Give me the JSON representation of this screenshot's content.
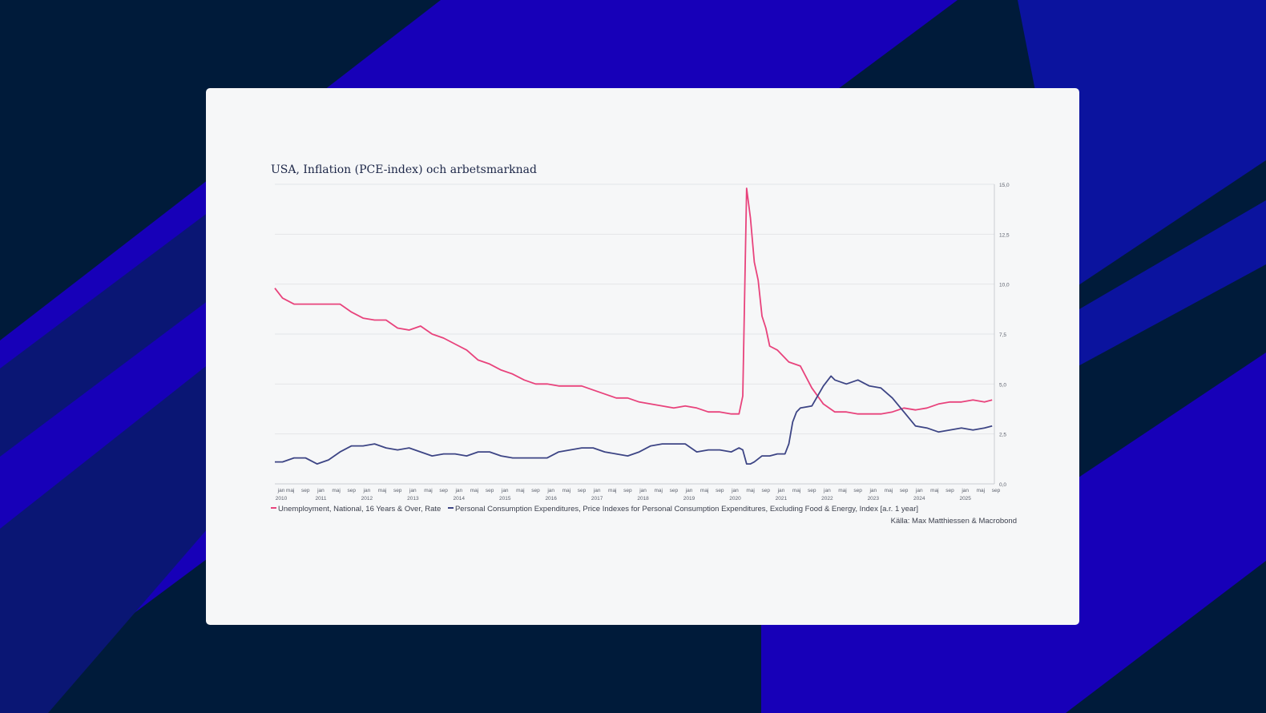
{
  "colors": {
    "background": "#001b3a",
    "stripe_bright": "#1700b8",
    "stripe_blue": "#0b139e",
    "stripe_navy": "#0a1674",
    "card": "#f6f7f8",
    "unemployment": "#e8437c",
    "pce": "#3d4585"
  },
  "chart_data": {
    "type": "line",
    "title": "USA, Inflation (PCE-index) och arbetsmarknad",
    "xlabel": "",
    "ylabel": "",
    "x_range": [
      "2010-01",
      "2025-09"
    ],
    "ylim": [
      0,
      15
    ],
    "y_ticks": [
      "0,0",
      "2,5",
      "5,0",
      "7,5",
      "10,0",
      "12,5",
      "15,0"
    ],
    "y_axis_side": "right",
    "grid": "horizontal",
    "x_tick_labels": [
      {
        "month": "jan",
        "year": "2010"
      },
      {
        "month": "maj",
        "year": ""
      },
      {
        "month": "sep",
        "year": ""
      },
      {
        "month": "jan",
        "year": "2011"
      },
      {
        "month": "maj",
        "year": ""
      },
      {
        "month": "sep",
        "year": ""
      },
      {
        "month": "jan",
        "year": "2012"
      },
      {
        "month": "maj",
        "year": ""
      },
      {
        "month": "sep",
        "year": ""
      },
      {
        "month": "jan",
        "year": "2013"
      },
      {
        "month": "maj",
        "year": ""
      },
      {
        "month": "sep",
        "year": ""
      },
      {
        "month": "jan",
        "year": "2014"
      },
      {
        "month": "maj",
        "year": ""
      },
      {
        "month": "sep",
        "year": ""
      },
      {
        "month": "jan",
        "year": "2015"
      },
      {
        "month": "maj",
        "year": ""
      },
      {
        "month": "sep",
        "year": ""
      },
      {
        "month": "jan",
        "year": "2016"
      },
      {
        "month": "maj",
        "year": ""
      },
      {
        "month": "sep",
        "year": ""
      },
      {
        "month": "jan",
        "year": "2017"
      },
      {
        "month": "maj",
        "year": ""
      },
      {
        "month": "sep",
        "year": ""
      },
      {
        "month": "jan",
        "year": "2018"
      },
      {
        "month": "maj",
        "year": ""
      },
      {
        "month": "sep",
        "year": ""
      },
      {
        "month": "jan",
        "year": "2019"
      },
      {
        "month": "maj",
        "year": ""
      },
      {
        "month": "sep",
        "year": ""
      },
      {
        "month": "jan",
        "year": "2020"
      },
      {
        "month": "maj",
        "year": ""
      },
      {
        "month": "sep",
        "year": ""
      },
      {
        "month": "jan",
        "year": "2021"
      },
      {
        "month": "maj",
        "year": ""
      },
      {
        "month": "sep",
        "year": ""
      },
      {
        "month": "jan",
        "year": "2022"
      },
      {
        "month": "maj",
        "year": ""
      },
      {
        "month": "sep",
        "year": ""
      },
      {
        "month": "jan",
        "year": "2023"
      },
      {
        "month": "maj",
        "year": ""
      },
      {
        "month": "sep",
        "year": ""
      },
      {
        "month": "jan",
        "year": "2024"
      },
      {
        "month": "maj",
        "year": ""
      },
      {
        "month": "sep",
        "year": ""
      },
      {
        "month": "jan",
        "year": "2025"
      },
      {
        "month": "maj",
        "year": ""
      },
      {
        "month": "sep",
        "year": ""
      }
    ],
    "series": [
      {
        "name": "Unemployment, National, 16 Years & Over, Rate",
        "color": "#e8437c",
        "points": [
          [
            "2010-01",
            9.8
          ],
          [
            "2010-03",
            9.3
          ],
          [
            "2010-06",
            9.0
          ],
          [
            "2010-09",
            9.0
          ],
          [
            "2010-12",
            9.0
          ],
          [
            "2011-03",
            9.0
          ],
          [
            "2011-06",
            9.0
          ],
          [
            "2011-09",
            8.6
          ],
          [
            "2011-12",
            8.3
          ],
          [
            "2012-03",
            8.2
          ],
          [
            "2012-06",
            8.2
          ],
          [
            "2012-09",
            7.8
          ],
          [
            "2012-12",
            7.7
          ],
          [
            "2013-03",
            7.9
          ],
          [
            "2013-06",
            7.5
          ],
          [
            "2013-09",
            7.3
          ],
          [
            "2013-12",
            7.0
          ],
          [
            "2014-03",
            6.7
          ],
          [
            "2014-06",
            6.2
          ],
          [
            "2014-09",
            6.0
          ],
          [
            "2014-12",
            5.7
          ],
          [
            "2015-03",
            5.5
          ],
          [
            "2015-06",
            5.2
          ],
          [
            "2015-09",
            5.0
          ],
          [
            "2015-12",
            5.0
          ],
          [
            "2016-03",
            4.9
          ],
          [
            "2016-06",
            4.9
          ],
          [
            "2016-09",
            4.9
          ],
          [
            "2016-12",
            4.7
          ],
          [
            "2017-03",
            4.5
          ],
          [
            "2017-06",
            4.3
          ],
          [
            "2017-09",
            4.3
          ],
          [
            "2017-12",
            4.1
          ],
          [
            "2018-03",
            4.0
          ],
          [
            "2018-06",
            3.9
          ],
          [
            "2018-09",
            3.8
          ],
          [
            "2018-12",
            3.9
          ],
          [
            "2019-03",
            3.8
          ],
          [
            "2019-06",
            3.6
          ],
          [
            "2019-09",
            3.6
          ],
          [
            "2019-12",
            3.5
          ],
          [
            "2020-02",
            3.5
          ],
          [
            "2020-03",
            4.4
          ],
          [
            "2020-04",
            14.8
          ],
          [
            "2020-05",
            13.3
          ],
          [
            "2020-06",
            11.1
          ],
          [
            "2020-07",
            10.2
          ],
          [
            "2020-08",
            8.4
          ],
          [
            "2020-09",
            7.8
          ],
          [
            "2020-10",
            6.9
          ],
          [
            "2020-12",
            6.7
          ],
          [
            "2021-03",
            6.1
          ],
          [
            "2021-06",
            5.9
          ],
          [
            "2021-09",
            4.8
          ],
          [
            "2021-12",
            4.0
          ],
          [
            "2022-03",
            3.6
          ],
          [
            "2022-06",
            3.6
          ],
          [
            "2022-09",
            3.5
          ],
          [
            "2022-12",
            3.5
          ],
          [
            "2023-03",
            3.5
          ],
          [
            "2023-06",
            3.6
          ],
          [
            "2023-09",
            3.8
          ],
          [
            "2023-12",
            3.7
          ],
          [
            "2024-03",
            3.8
          ],
          [
            "2024-06",
            4.0
          ],
          [
            "2024-09",
            4.1
          ],
          [
            "2024-12",
            4.1
          ],
          [
            "2025-03",
            4.2
          ],
          [
            "2025-06",
            4.1
          ],
          [
            "2025-08",
            4.2
          ]
        ]
      },
      {
        "name": "Personal Consumption Expenditures, Price Indexes for Personal Consumption Expenditures, Excluding Food & Energy, Index [a.r. 1 year]",
        "color": "#3d4585",
        "points": [
          [
            "2010-01",
            1.1
          ],
          [
            "2010-03",
            1.1
          ],
          [
            "2010-06",
            1.3
          ],
          [
            "2010-09",
            1.3
          ],
          [
            "2010-12",
            1.0
          ],
          [
            "2011-03",
            1.2
          ],
          [
            "2011-06",
            1.6
          ],
          [
            "2011-09",
            1.9
          ],
          [
            "2011-12",
            1.9
          ],
          [
            "2012-03",
            2.0
          ],
          [
            "2012-06",
            1.8
          ],
          [
            "2012-09",
            1.7
          ],
          [
            "2012-12",
            1.8
          ],
          [
            "2013-03",
            1.6
          ],
          [
            "2013-06",
            1.4
          ],
          [
            "2013-09",
            1.5
          ],
          [
            "2013-12",
            1.5
          ],
          [
            "2014-03",
            1.4
          ],
          [
            "2014-06",
            1.6
          ],
          [
            "2014-09",
            1.6
          ],
          [
            "2014-12",
            1.4
          ],
          [
            "2015-03",
            1.3
          ],
          [
            "2015-06",
            1.3
          ],
          [
            "2015-09",
            1.3
          ],
          [
            "2015-12",
            1.3
          ],
          [
            "2016-03",
            1.6
          ],
          [
            "2016-06",
            1.7
          ],
          [
            "2016-09",
            1.8
          ],
          [
            "2016-12",
            1.8
          ],
          [
            "2017-03",
            1.6
          ],
          [
            "2017-06",
            1.5
          ],
          [
            "2017-09",
            1.4
          ],
          [
            "2017-12",
            1.6
          ],
          [
            "2018-03",
            1.9
          ],
          [
            "2018-06",
            2.0
          ],
          [
            "2018-09",
            2.0
          ],
          [
            "2018-12",
            2.0
          ],
          [
            "2019-03",
            1.6
          ],
          [
            "2019-06",
            1.7
          ],
          [
            "2019-09",
            1.7
          ],
          [
            "2019-12",
            1.6
          ],
          [
            "2020-02",
            1.8
          ],
          [
            "2020-03",
            1.7
          ],
          [
            "2020-04",
            1.0
          ],
          [
            "2020-05",
            1.0
          ],
          [
            "2020-06",
            1.1
          ],
          [
            "2020-08",
            1.4
          ],
          [
            "2020-10",
            1.4
          ],
          [
            "2020-12",
            1.5
          ],
          [
            "2021-02",
            1.5
          ],
          [
            "2021-03",
            2.0
          ],
          [
            "2021-04",
            3.1
          ],
          [
            "2021-05",
            3.6
          ],
          [
            "2021-06",
            3.8
          ],
          [
            "2021-09",
            3.9
          ],
          [
            "2021-12",
            4.9
          ],
          [
            "2022-02",
            5.4
          ],
          [
            "2022-03",
            5.2
          ],
          [
            "2022-06",
            5.0
          ],
          [
            "2022-09",
            5.2
          ],
          [
            "2022-12",
            4.9
          ],
          [
            "2023-03",
            4.8
          ],
          [
            "2023-06",
            4.3
          ],
          [
            "2023-09",
            3.6
          ],
          [
            "2023-12",
            2.9
          ],
          [
            "2024-03",
            2.8
          ],
          [
            "2024-06",
            2.6
          ],
          [
            "2024-09",
            2.7
          ],
          [
            "2024-12",
            2.8
          ],
          [
            "2025-03",
            2.7
          ],
          [
            "2025-06",
            2.8
          ],
          [
            "2025-08",
            2.9
          ]
        ]
      }
    ]
  },
  "source": "Källa: Max Matthiessen & Macrobond"
}
